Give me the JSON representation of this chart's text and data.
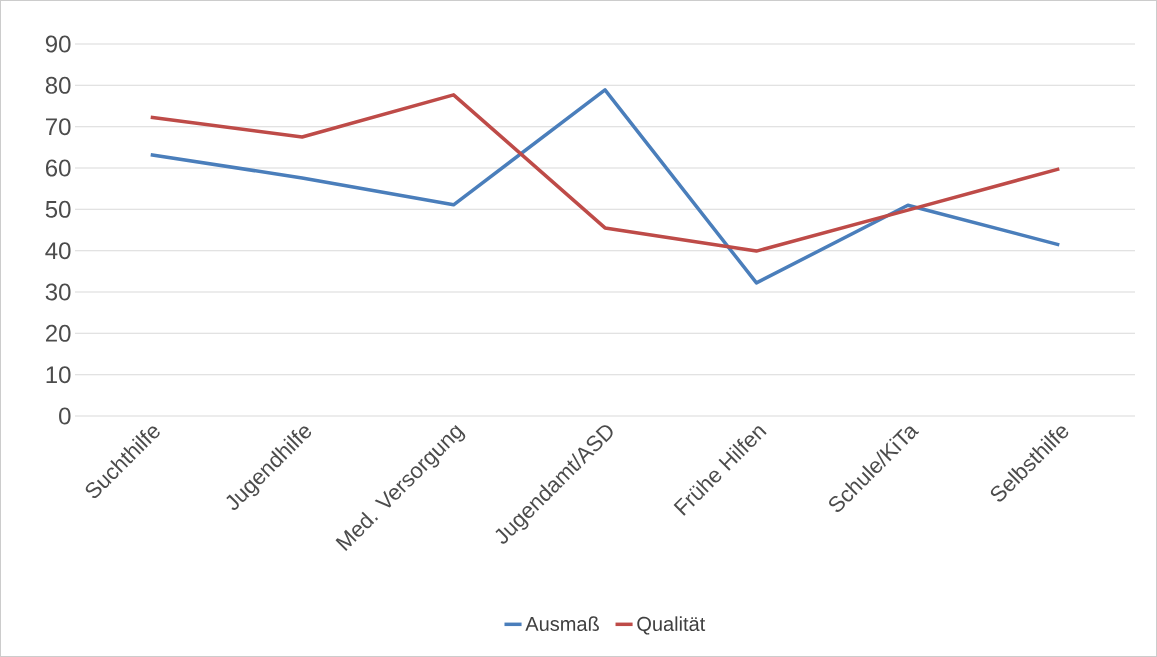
{
  "chart_data": {
    "type": "line",
    "categories": [
      "Suchthilfe",
      "Jugendhilfe",
      "Med. Versorgung",
      "Jugendamt/ASD",
      "Frühe Hilfen",
      "Schule/KiTa",
      "Selbsthilfe"
    ],
    "series": [
      {
        "name": "Ausmaß",
        "color": "#4a7ebb",
        "values": [
          63.2,
          57.6,
          51.1,
          78.9,
          32.2,
          51,
          41.4
        ]
      },
      {
        "name": "Qualität",
        "color": "#be4b48",
        "values": [
          72.3,
          67.5,
          77.7,
          45.5,
          39.9,
          49.8,
          59.8
        ]
      }
    ],
    "ylim": [
      0,
      90
    ],
    "yticks": [
      0,
      10,
      20,
      30,
      40,
      50,
      60,
      70,
      80,
      90
    ],
    "grid": "y",
    "legend": "bottom",
    "marker": "none",
    "line_style": "solid"
  }
}
